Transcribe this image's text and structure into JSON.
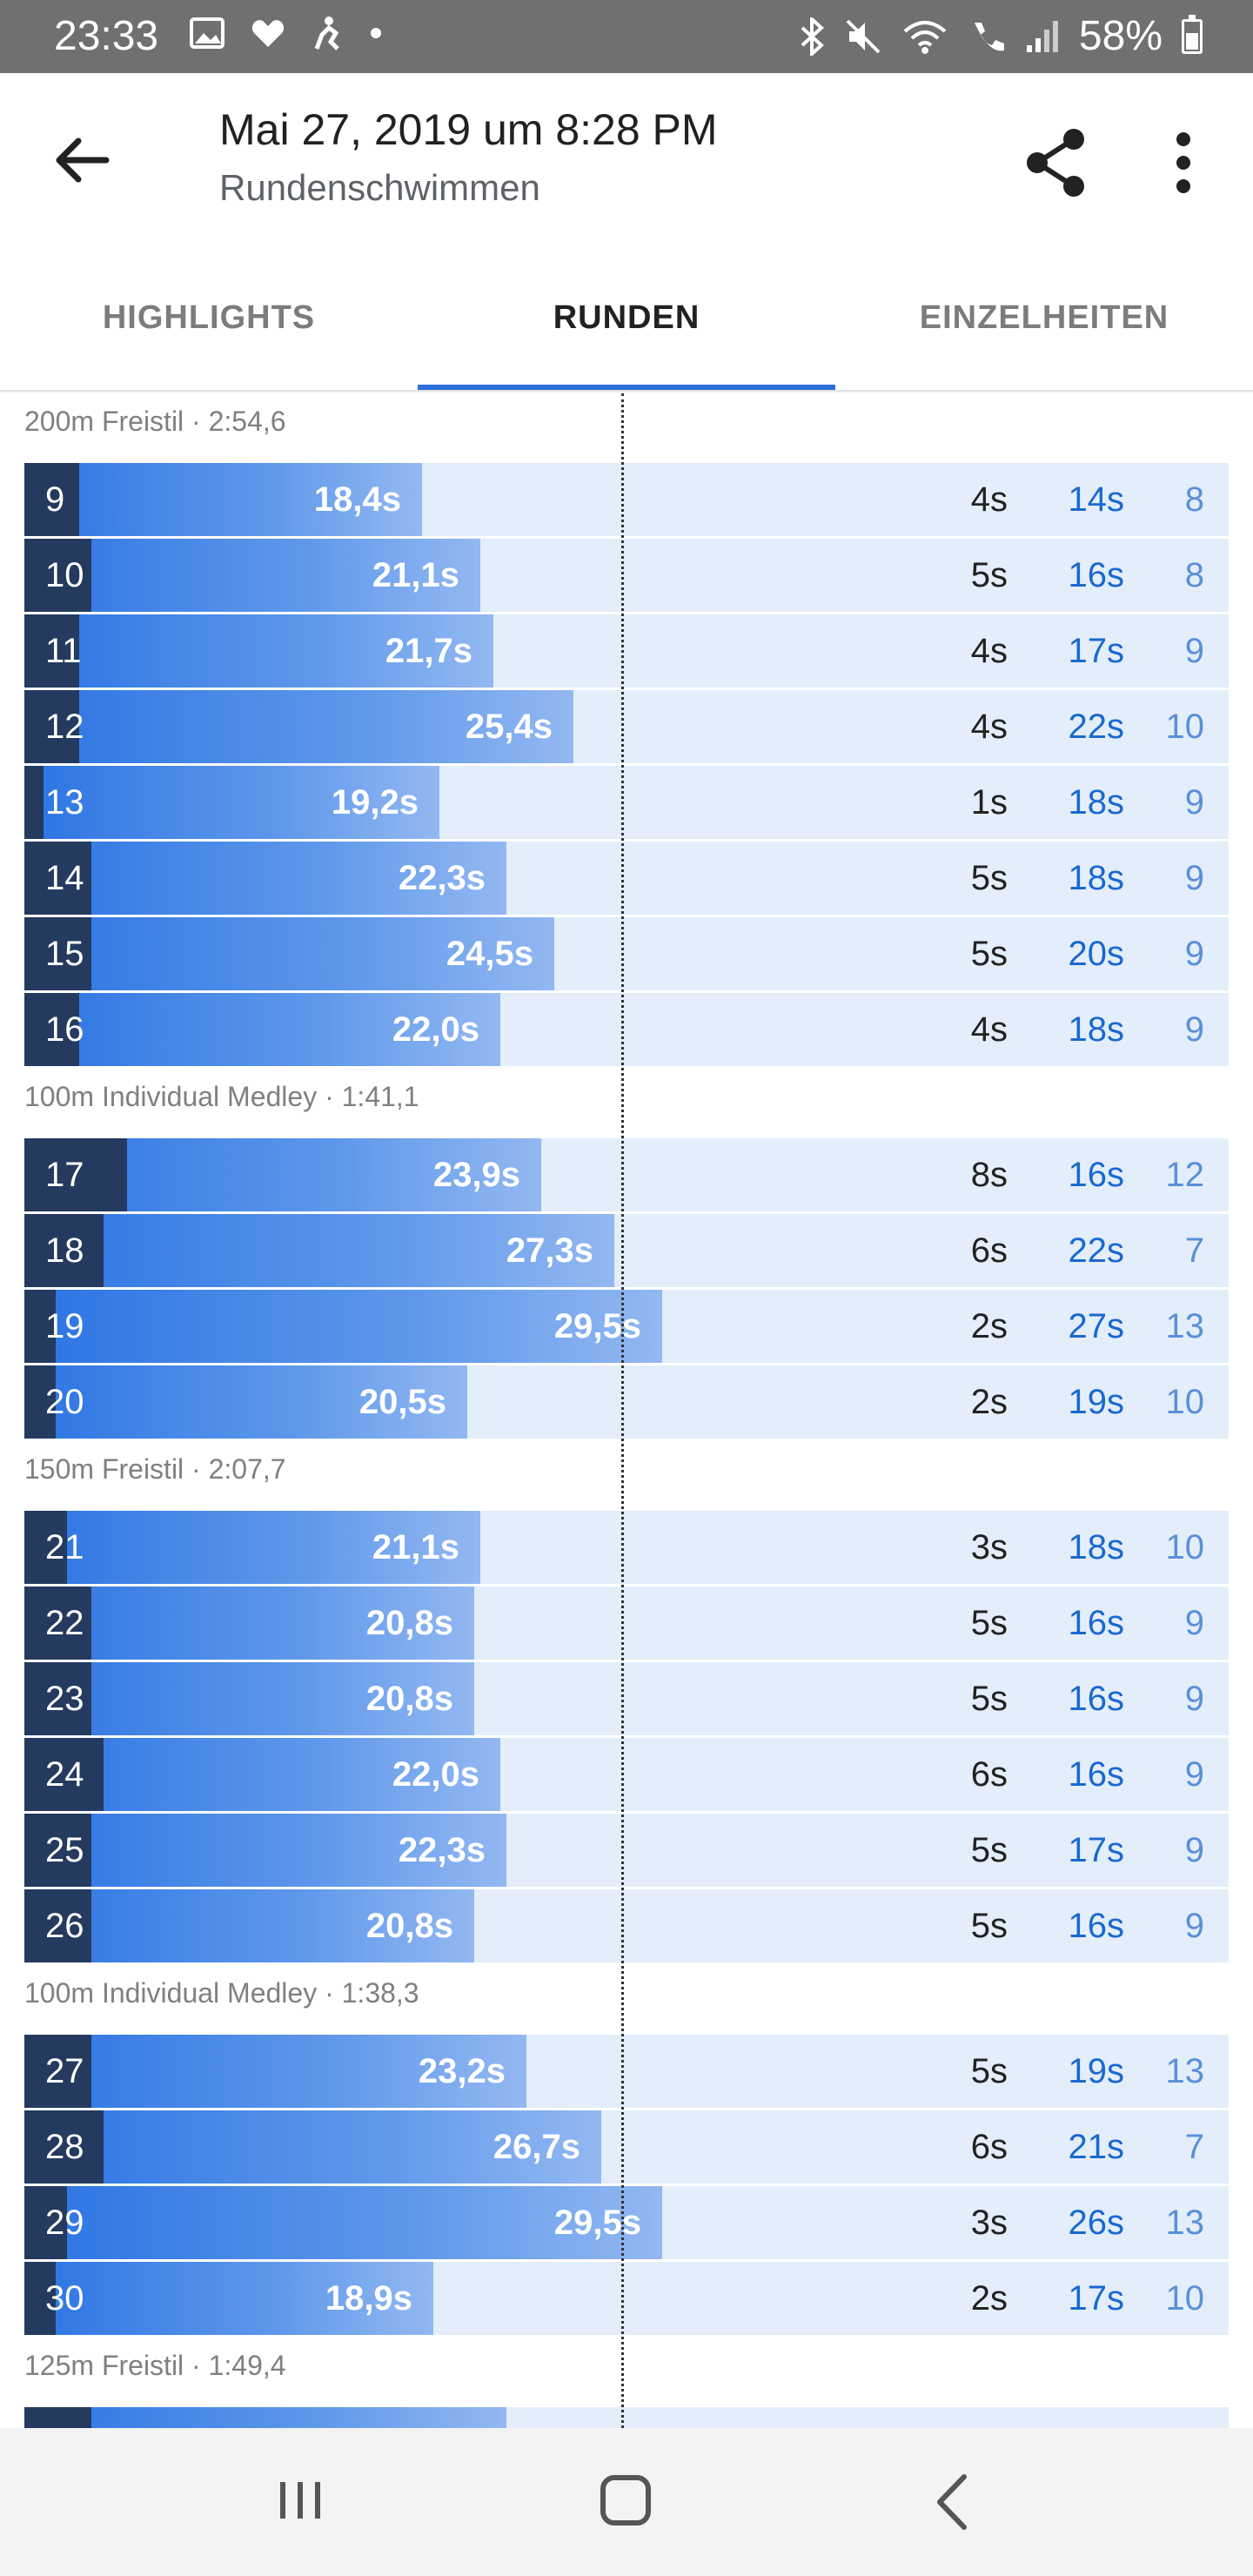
{
  "status_bar": {
    "time": "23:33",
    "battery": "58%",
    "icons": [
      "image-icon",
      "heart-icon",
      "fitness-icon",
      "dot-icon",
      "bluetooth-icon",
      "mute-icon",
      "wifi-icon",
      "wifi-call-icon",
      "signal-icon",
      "battery-icon"
    ]
  },
  "header": {
    "title": "Mai 27, 2019 um 8:28 PM",
    "subtitle": "Rundenschwimmen"
  },
  "tabs": [
    {
      "label": "HIGHLIGHTS"
    },
    {
      "label": "RUNDEN"
    },
    {
      "label": "EINZELHEITEN"
    }
  ],
  "selected_tab": 1,
  "colors": {
    "accent": "#2a6fdb",
    "row_bg": "#e3eefa",
    "rest_dark": "#243a5e",
    "pace_blue": "#1a68d1",
    "strokes_blue": "#5b8fd8"
  },
  "sections": [
    {
      "title": "200m Freistil · 2:54,6",
      "laps": [
        {
          "lap": "9",
          "duration": "18,4s",
          "rest": "4s",
          "pace": "14s",
          "strokes": "8",
          "duration_s": 18.4,
          "rest_s": 4
        },
        {
          "lap": "10",
          "duration": "21,1s",
          "rest": "5s",
          "pace": "16s",
          "strokes": "8",
          "duration_s": 21.1,
          "rest_s": 5
        },
        {
          "lap": "11",
          "duration": "21,7s",
          "rest": "4s",
          "pace": "17s",
          "strokes": "9",
          "duration_s": 21.7,
          "rest_s": 4
        },
        {
          "lap": "12",
          "duration": "25,4s",
          "rest": "4s",
          "pace": "22s",
          "strokes": "10",
          "duration_s": 25.4,
          "rest_s": 4
        },
        {
          "lap": "13",
          "duration": "19,2s",
          "rest": "1s",
          "pace": "18s",
          "strokes": "9",
          "duration_s": 19.2,
          "rest_s": 1
        },
        {
          "lap": "14",
          "duration": "22,3s",
          "rest": "5s",
          "pace": "18s",
          "strokes": "9",
          "duration_s": 22.3,
          "rest_s": 5
        },
        {
          "lap": "15",
          "duration": "24,5s",
          "rest": "5s",
          "pace": "20s",
          "strokes": "9",
          "duration_s": 24.5,
          "rest_s": 5
        },
        {
          "lap": "16",
          "duration": "22,0s",
          "rest": "4s",
          "pace": "18s",
          "strokes": "9",
          "duration_s": 22.0,
          "rest_s": 4
        }
      ]
    },
    {
      "title": "100m Individual Medley · 1:41,1",
      "laps": [
        {
          "lap": "17",
          "duration": "23,9s",
          "rest": "8s",
          "pace": "16s",
          "strokes": "12",
          "duration_s": 23.9,
          "rest_s": 8
        },
        {
          "lap": "18",
          "duration": "27,3s",
          "rest": "6s",
          "pace": "22s",
          "strokes": "7",
          "duration_s": 27.3,
          "rest_s": 6
        },
        {
          "lap": "19",
          "duration": "29,5s",
          "rest": "2s",
          "pace": "27s",
          "strokes": "13",
          "duration_s": 29.5,
          "rest_s": 2
        },
        {
          "lap": "20",
          "duration": "20,5s",
          "rest": "2s",
          "pace": "19s",
          "strokes": "10",
          "duration_s": 20.5,
          "rest_s": 2
        }
      ]
    },
    {
      "title": "150m Freistil · 2:07,7",
      "laps": [
        {
          "lap": "21",
          "duration": "21,1s",
          "rest": "3s",
          "pace": "18s",
          "strokes": "10",
          "duration_s": 21.1,
          "rest_s": 3
        },
        {
          "lap": "22",
          "duration": "20,8s",
          "rest": "5s",
          "pace": "16s",
          "strokes": "9",
          "duration_s": 20.8,
          "rest_s": 5
        },
        {
          "lap": "23",
          "duration": "20,8s",
          "rest": "5s",
          "pace": "16s",
          "strokes": "9",
          "duration_s": 20.8,
          "rest_s": 5
        },
        {
          "lap": "24",
          "duration": "22,0s",
          "rest": "6s",
          "pace": "16s",
          "strokes": "9",
          "duration_s": 22.0,
          "rest_s": 6
        },
        {
          "lap": "25",
          "duration": "22,3s",
          "rest": "5s",
          "pace": "17s",
          "strokes": "9",
          "duration_s": 22.3,
          "rest_s": 5
        },
        {
          "lap": "26",
          "duration": "20,8s",
          "rest": "5s",
          "pace": "16s",
          "strokes": "9",
          "duration_s": 20.8,
          "rest_s": 5
        }
      ]
    },
    {
      "title": "100m Individual Medley · 1:38,3",
      "laps": [
        {
          "lap": "27",
          "duration": "23,2s",
          "rest": "5s",
          "pace": "19s",
          "strokes": "13",
          "duration_s": 23.2,
          "rest_s": 5
        },
        {
          "lap": "28",
          "duration": "26,7s",
          "rest": "6s",
          "pace": "21s",
          "strokes": "7",
          "duration_s": 26.7,
          "rest_s": 6
        },
        {
          "lap": "29",
          "duration": "29,5s",
          "rest": "3s",
          "pace": "26s",
          "strokes": "13",
          "duration_s": 29.5,
          "rest_s": 3
        },
        {
          "lap": "30",
          "duration": "18,9s",
          "rest": "2s",
          "pace": "17s",
          "strokes": "10",
          "duration_s": 18.9,
          "rest_s": 2
        }
      ]
    },
    {
      "title": "125m Freistil · 1:49,4",
      "laps": [
        {
          "lap": "",
          "duration": "",
          "rest": "",
          "pace": "",
          "strokes": "",
          "duration_s": 22.3,
          "rest_s": 5
        }
      ]
    }
  ]
}
